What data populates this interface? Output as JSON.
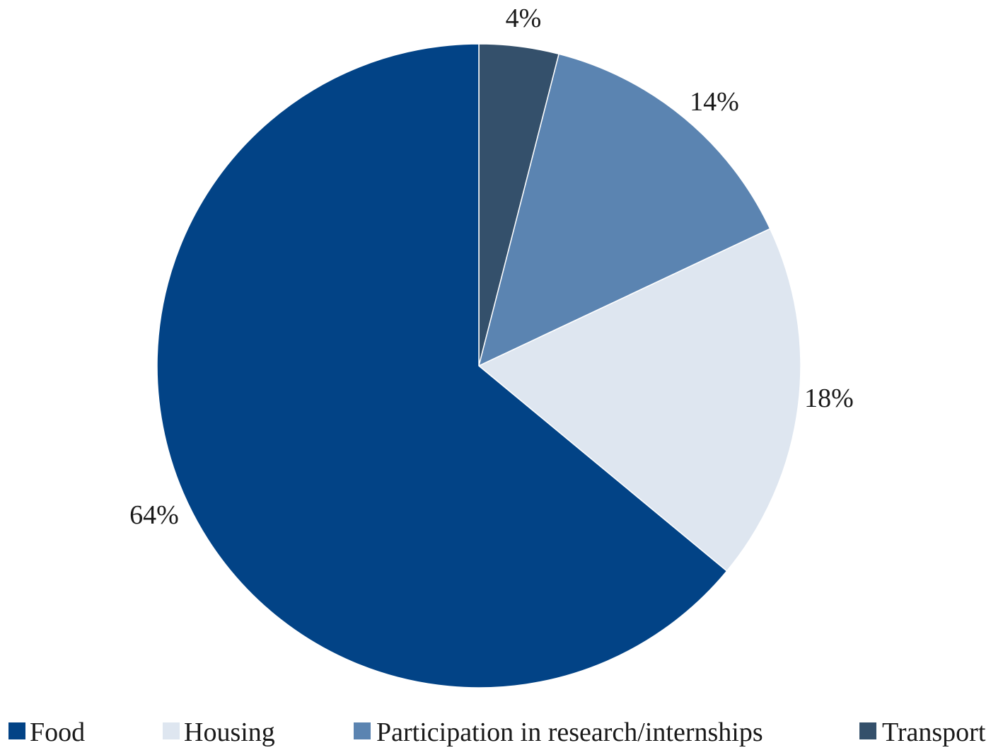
{
  "chart_data": {
    "type": "pie",
    "title": "",
    "slices": [
      {
        "name": "Transport",
        "value": 4,
        "label": "4%",
        "color": "#34506b"
      },
      {
        "name": "Participation in research/internships",
        "value": 14,
        "label": "14%",
        "color": "#5b84b1"
      },
      {
        "name": "Housing",
        "value": 18,
        "label": "18%",
        "color": "#dee6f0"
      },
      {
        "name": "Food",
        "value": 64,
        "label": "64%",
        "color": "#024386"
      }
    ],
    "start_angle": "12 o'clock",
    "direction": "clockwise",
    "legend": {
      "position": "bottom",
      "items": [
        {
          "name": "Food",
          "color": "#024386"
        },
        {
          "name": "Housing",
          "color": "#dee6f0"
        },
        {
          "name": "Participation in research/internships",
          "color": "#5b84b1"
        },
        {
          "name": "Transport",
          "color": "#34506b"
        }
      ]
    }
  }
}
